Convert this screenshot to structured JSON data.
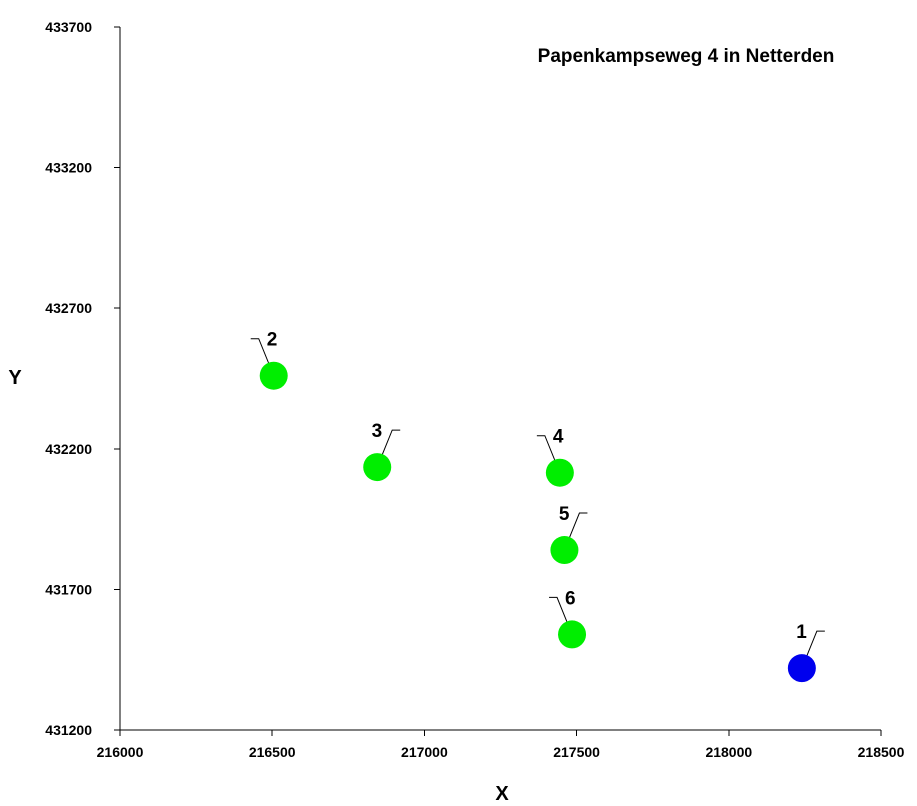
{
  "chart_data": {
    "type": "scatter",
    "title": "Papenkampseweg 4 in Netterden",
    "xlabel": "X",
    "ylabel": "Y",
    "xlim": [
      216000,
      218500
    ],
    "ylim": [
      431200,
      433700
    ],
    "x_ticks": [
      "216000",
      "216500",
      "217000",
      "217500",
      "218000",
      "218500"
    ],
    "y_ticks": [
      "431200",
      "431700",
      "432200",
      "432700",
      "433200",
      "433700"
    ],
    "grid": false,
    "legend": "none",
    "colors": {
      "source": "#0000ee",
      "receptor": "#00ee00"
    },
    "points": [
      {
        "label": "1",
        "x": 218240,
        "y": 431420,
        "color": "#0000ee",
        "leader": "right"
      },
      {
        "label": "2",
        "x": 216505,
        "y": 432460,
        "color": "#00ee00",
        "leader": "left"
      },
      {
        "label": "3",
        "x": 216845,
        "y": 432135,
        "color": "#00ee00",
        "leader": "right"
      },
      {
        "label": "4",
        "x": 217445,
        "y": 432115,
        "color": "#00ee00",
        "leader": "left"
      },
      {
        "label": "5",
        "x": 217460,
        "y": 431840,
        "color": "#00ee00",
        "leader": "right"
      },
      {
        "label": "6",
        "x": 217485,
        "y": 431540,
        "color": "#00ee00",
        "leader": "left"
      }
    ]
  }
}
